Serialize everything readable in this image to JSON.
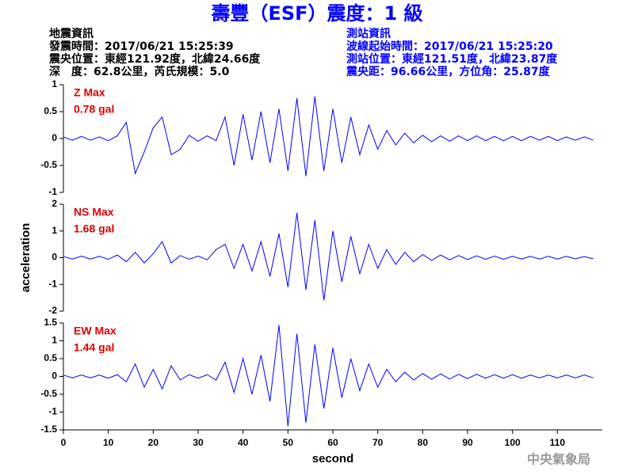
{
  "header": {
    "title": "壽豐（ESF）震度：1 級",
    "event_info": [
      "地震資訊",
      "發震時間：2017/06/21 15:25:39",
      "震央位置：東經121.92度，北緯24.66度",
      "深　度：62.8公里，芮氏規模：5.0"
    ],
    "station_info": [
      "測站資訊",
      "波線起始時間：2017/06/21 15:25:20",
      "測站位置：東經121.51度，北緯23.87度",
      "震央距：96.66公里，方位角：25.87度"
    ]
  },
  "footer": "中央氣象局",
  "chart_data": [
    {
      "type": "line",
      "color": "#0000ff",
      "annotations": [
        "Z Max",
        "0.78 gal"
      ],
      "x": [
        0,
        2,
        4,
        6,
        8,
        10,
        12,
        14,
        16,
        18,
        20,
        22,
        24,
        26,
        28,
        30,
        32,
        34,
        36,
        38,
        40,
        42,
        44,
        46,
        48,
        50,
        52,
        54,
        56,
        58,
        60,
        62,
        64,
        66,
        68,
        70,
        72,
        74,
        76,
        78,
        80,
        82,
        84,
        86,
        88,
        90,
        92,
        94,
        96,
        98,
        100,
        102,
        104,
        106,
        108,
        110,
        112,
        114,
        116,
        118
      ],
      "values": [
        0.03,
        -0.03,
        0.04,
        -0.03,
        0.03,
        -0.04,
        0.05,
        0.3,
        -0.65,
        -0.25,
        0.2,
        0.4,
        -0.3,
        -0.2,
        0.06,
        -0.05,
        0.05,
        -0.04,
        0.4,
        -0.5,
        0.45,
        -0.4,
        0.5,
        -0.45,
        0.55,
        -0.6,
        0.75,
        -0.7,
        0.78,
        -0.6,
        0.55,
        -0.45,
        0.4,
        -0.3,
        0.25,
        -0.2,
        0.15,
        -0.12,
        0.1,
        -0.08,
        0.06,
        -0.06,
        0.05,
        -0.05,
        0.05,
        -0.04,
        0.05,
        -0.04,
        0.04,
        -0.04,
        0.04,
        -0.04,
        0.04,
        -0.03,
        0.04,
        -0.04,
        0.03,
        -0.03,
        0.03,
        -0.03
      ],
      "xlim": [
        0,
        120
      ],
      "ylim": [
        -1,
        1
      ],
      "yticks": [
        -1,
        -0.5,
        0,
        0.5,
        1
      ]
    },
    {
      "type": "line",
      "color": "#0000ff",
      "annotations": [
        "NS Max",
        "1.68 gal"
      ],
      "ylabel": "acceleration",
      "x": [
        0,
        2,
        4,
        6,
        8,
        10,
        12,
        14,
        16,
        18,
        20,
        22,
        24,
        26,
        28,
        30,
        32,
        34,
        36,
        38,
        40,
        42,
        44,
        46,
        48,
        50,
        52,
        54,
        56,
        58,
        60,
        62,
        64,
        66,
        68,
        70,
        72,
        74,
        76,
        78,
        80,
        82,
        84,
        86,
        88,
        90,
        92,
        94,
        96,
        98,
        100,
        102,
        104,
        106,
        108,
        110,
        112,
        114,
        116,
        118
      ],
      "values": [
        0.05,
        -0.05,
        0.06,
        -0.05,
        0.05,
        -0.06,
        0.1,
        -0.15,
        0.2,
        -0.2,
        0.15,
        0.6,
        -0.2,
        0.08,
        -0.06,
        0.06,
        -0.08,
        0.3,
        0.5,
        -0.4,
        0.5,
        -0.5,
        0.6,
        -0.7,
        0.9,
        -1.1,
        1.68,
        -1.2,
        1.4,
        -1.6,
        1.0,
        -0.9,
        0.8,
        -0.6,
        0.5,
        -0.4,
        0.3,
        -0.25,
        0.2,
        -0.15,
        0.12,
        -0.1,
        0.1,
        -0.08,
        0.08,
        -0.07,
        0.07,
        -0.06,
        0.06,
        -0.06,
        0.05,
        -0.05,
        0.05,
        -0.05,
        0.05,
        -0.05,
        0.05,
        -0.04,
        0.04,
        -0.04
      ],
      "xlim": [
        0,
        120
      ],
      "ylim": [
        -2,
        2
      ],
      "yticks": [
        -2,
        -1,
        0,
        1,
        2
      ]
    },
    {
      "type": "line",
      "color": "#0000ff",
      "annotations": [
        "EW Max",
        "1.44 gal"
      ],
      "xlabel": "second",
      "x": [
        0,
        2,
        4,
        6,
        8,
        10,
        12,
        14,
        16,
        18,
        20,
        22,
        24,
        26,
        28,
        30,
        32,
        34,
        36,
        38,
        40,
        42,
        44,
        46,
        48,
        50,
        52,
        54,
        56,
        58,
        60,
        62,
        64,
        66,
        68,
        70,
        72,
        74,
        76,
        78,
        80,
        82,
        84,
        86,
        88,
        90,
        92,
        94,
        96,
        98,
        100,
        102,
        104,
        106,
        108,
        110,
        112,
        114,
        116,
        118
      ],
      "values": [
        0.04,
        -0.04,
        0.04,
        -0.04,
        0.04,
        -0.05,
        0.05,
        -0.15,
        0.35,
        -0.3,
        0.2,
        -0.35,
        0.3,
        -0.1,
        0.05,
        -0.05,
        0.05,
        -0.1,
        0.4,
        -0.45,
        0.5,
        -0.5,
        0.6,
        -0.7,
        1.44,
        -1.4,
        1.2,
        -1.3,
        0.9,
        -0.9,
        0.8,
        -0.6,
        0.5,
        -0.4,
        0.35,
        -0.3,
        0.2,
        -0.15,
        0.12,
        -0.1,
        0.08,
        -0.08,
        0.07,
        -0.07,
        0.06,
        -0.06,
        0.06,
        -0.05,
        0.05,
        -0.05,
        0.05,
        -0.05,
        0.04,
        -0.04,
        0.04,
        -0.04,
        0.04,
        -0.04,
        0.04,
        -0.04
      ],
      "xlim": [
        0,
        120
      ],
      "ylim": [
        -1.5,
        1.5
      ],
      "yticks": [
        -1.5,
        -1,
        -0.5,
        0,
        0.5,
        1,
        1.5
      ],
      "xticks": [
        0,
        10,
        20,
        30,
        40,
        50,
        60,
        70,
        80,
        90,
        100,
        110
      ]
    }
  ]
}
